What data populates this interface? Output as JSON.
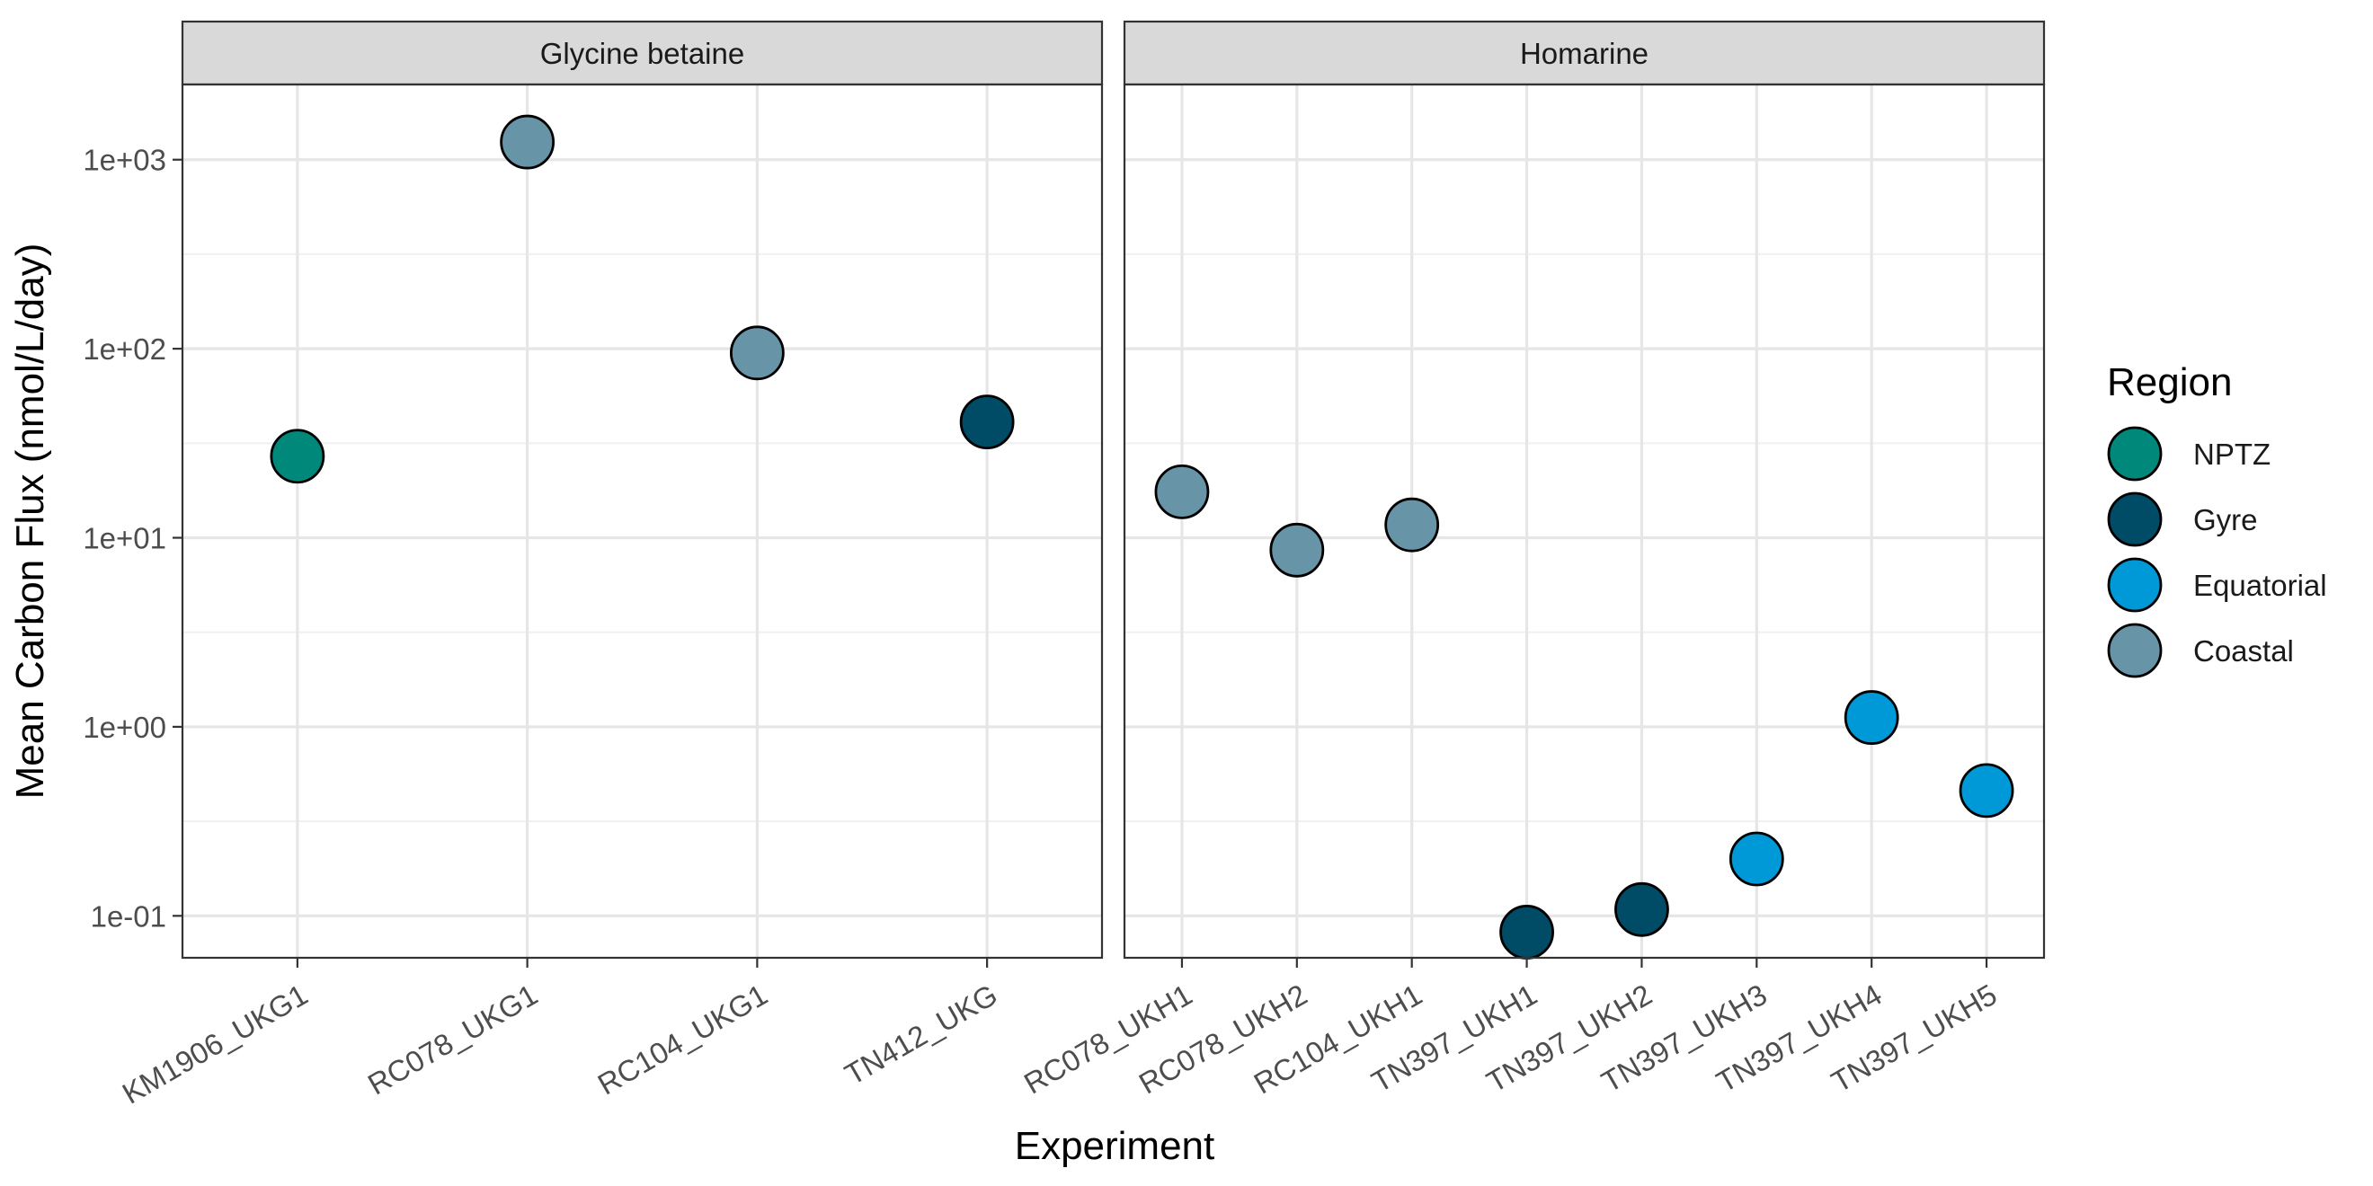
{
  "chart_data": {
    "type": "scatter",
    "xlabel": "Experiment",
    "ylabel": "Mean Carbon Flux (nmol/L/day)",
    "y_scale": "log10",
    "ylim": [
      0.06,
      2500
    ],
    "y_ticks": [
      {
        "value": 0.1,
        "label": "1e-01"
      },
      {
        "value": 1,
        "label": "1e+00"
      },
      {
        "value": 10,
        "label": "1e+01"
      },
      {
        "value": 100,
        "label": "1e+02"
      },
      {
        "value": 1000,
        "label": "1e+03"
      }
    ],
    "grid": true,
    "legend": {
      "title": "Region",
      "placement": "right",
      "entries": [
        {
          "label": "NPTZ",
          "color": "#00897B"
        },
        {
          "label": "Gyre",
          "color": "#004B66"
        },
        {
          "label": "Equatorial",
          "color": "#0099D8"
        },
        {
          "label": "Coastal",
          "color": "#6894A8"
        }
      ]
    },
    "facets": [
      {
        "title": "Glycine betaine",
        "categories": [
          "KM1906_UKG1",
          "RC078_UKG1",
          "RC104_UKG1",
          "TN412_UKG"
        ],
        "points": [
          {
            "x": "KM1906_UKG1",
            "y": 27,
            "region": "NPTZ"
          },
          {
            "x": "RC078_UKG1",
            "y": 1240,
            "region": "Coastal"
          },
          {
            "x": "RC104_UKG1",
            "y": 95,
            "region": "Coastal"
          },
          {
            "x": "TN412_UKG",
            "y": 41,
            "region": "Gyre"
          }
        ]
      },
      {
        "title": "Homarine",
        "categories": [
          "RC078_UKH1",
          "RC078_UKH2",
          "RC104_UKH1",
          "TN397_UKH1",
          "TN397_UKH2",
          "TN397_UKH3",
          "TN397_UKH4",
          "TN397_UKH5"
        ],
        "points": [
          {
            "x": "RC078_UKH1",
            "y": 17.5,
            "region": "Coastal"
          },
          {
            "x": "RC078_UKH2",
            "y": 8.6,
            "region": "Coastal"
          },
          {
            "x": "RC104_UKH1",
            "y": 11.7,
            "region": "Coastal"
          },
          {
            "x": "TN397_UKH1",
            "y": 0.082,
            "region": "Gyre"
          },
          {
            "x": "TN397_UKH2",
            "y": 0.108,
            "region": "Gyre"
          },
          {
            "x": "TN397_UKH3",
            "y": 0.2,
            "region": "Equatorial"
          },
          {
            "x": "TN397_UKH4",
            "y": 1.12,
            "region": "Equatorial"
          },
          {
            "x": "TN397_UKH5",
            "y": 0.46,
            "region": "Equatorial"
          }
        ]
      }
    ]
  }
}
